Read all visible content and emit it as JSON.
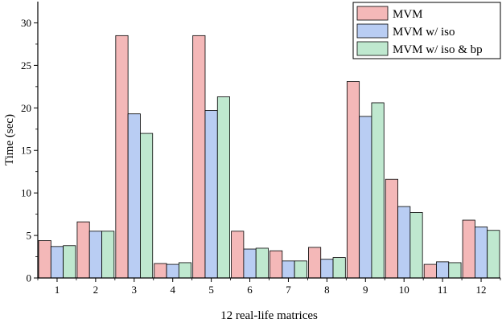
{
  "chart_data": {
    "type": "bar",
    "title": "",
    "xlabel": "12 real-life matrices",
    "ylabel": "Time (sec)",
    "ylim": [
      0,
      32.5
    ],
    "yticks": [
      0,
      5,
      10,
      15,
      20,
      25,
      30
    ],
    "categories": [
      "1",
      "2",
      "3",
      "4",
      "5",
      "6",
      "7",
      "8",
      "9",
      "10",
      "11",
      "12"
    ],
    "series": [
      {
        "name": "MVM",
        "color": "#f4b8b8",
        "values": [
          4.4,
          6.6,
          28.5,
          1.7,
          28.5,
          5.5,
          3.2,
          3.6,
          23.1,
          11.6,
          1.6,
          6.8
        ]
      },
      {
        "name": "MVM w/ iso",
        "color": "#b9cdf3",
        "values": [
          3.7,
          5.5,
          19.3,
          1.6,
          19.7,
          3.4,
          2.0,
          2.2,
          19.0,
          8.4,
          1.9,
          6.0
        ]
      },
      {
        "name": "MVM w/ iso & bp",
        "color": "#bfe8cf",
        "values": [
          3.8,
          5.5,
          17.0,
          1.8,
          21.3,
          3.5,
          2.0,
          2.4,
          20.6,
          7.7,
          1.8,
          5.6
        ]
      }
    ],
    "legend_position": "top-right",
    "grid": false
  }
}
